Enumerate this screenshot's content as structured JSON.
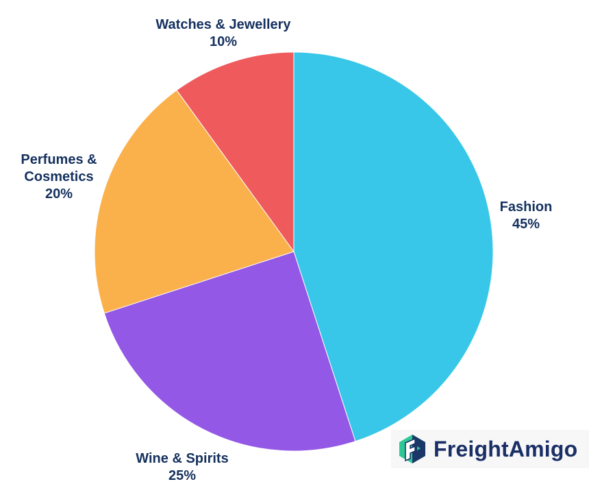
{
  "chart_data": {
    "type": "pie",
    "title": "",
    "categories": [
      "Fashion",
      "Wine & Spirits",
      "Perfumes & Cosmetics",
      "Watches & Jewellery"
    ],
    "values": [
      45,
      25,
      20,
      10
    ],
    "unit": "%",
    "colors": [
      "#38c7e8",
      "#9358e5",
      "#fbb14b",
      "#ef5b5d"
    ],
    "start_angle_deg": 0,
    "direction": "clockwise",
    "legend": "none (direct labels)",
    "center": [
      429,
      367
    ],
    "radius": 291
  },
  "labels": {
    "fashion": {
      "name": "Fashion",
      "pct": "45%"
    },
    "wine": {
      "name": "Wine & Spirits",
      "pct": "25%"
    },
    "perfumes": {
      "name_line1": "Perfumes &",
      "name_line2": "Cosmetics",
      "pct": "20%"
    },
    "watches": {
      "name": "Watches & Jewellery",
      "pct": "10%"
    }
  },
  "branding": {
    "logo_text": "FreightAmigo",
    "logo_colors": {
      "green": "#2ec795",
      "navy": "#1a2f66"
    }
  }
}
